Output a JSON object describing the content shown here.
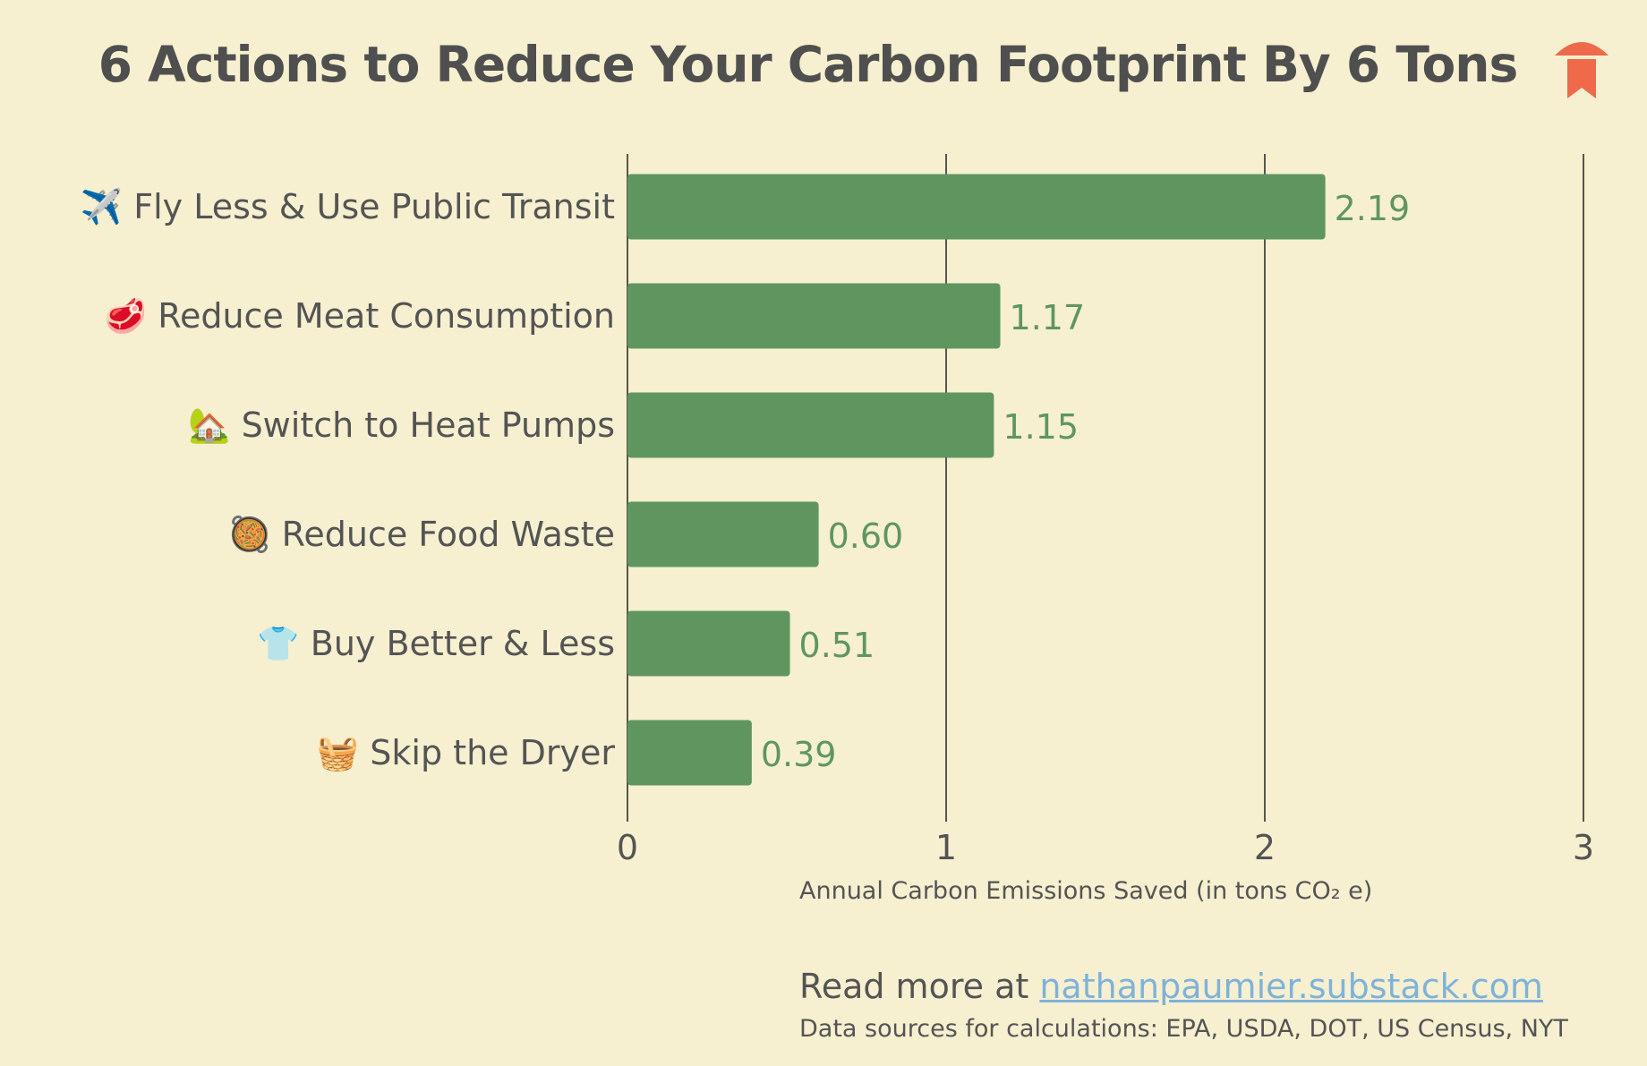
{
  "chart_data": {
    "type": "bar",
    "orientation": "horizontal",
    "title": "6 Actions to Reduce Your Carbon Footprint By 6 Tons",
    "categories": [
      "✈️ Fly Less & Use Public Transit",
      "🥩 Reduce Meat Consumption",
      "🏡 Switch to Heat Pumps",
      "🥘 Reduce Food Waste",
      "👕 Buy Better & Less",
      "🧺 Skip the Dryer"
    ],
    "values": [
      2.19,
      1.17,
      1.15,
      0.6,
      0.51,
      0.39
    ],
    "value_labels": [
      "2.19",
      "1.17",
      "1.15",
      "0.60",
      "0.51",
      "0.39"
    ],
    "xlabel": "Annual Carbon Emissions Saved (in tons CO₂ e)",
    "ylabel": "",
    "xlim": [
      0,
      3
    ],
    "xticks": [
      "0",
      "1",
      "2",
      "3"
    ],
    "grid": "vertical",
    "bar_color": "#5f9660",
    "value_label_color": "#5f9660",
    "gridline_color": "#222222"
  },
  "footer": {
    "read_more_prefix": "Read more at ",
    "read_more_link": "nathanpaumier.substack.com",
    "sources": "Data sources for calculations: EPA, USDA, DOT, US Census, NYT"
  },
  "logo": {
    "icon": "bookmark-icon",
    "color": "#EE6A4A"
  },
  "background_color": "#F6F0D0"
}
